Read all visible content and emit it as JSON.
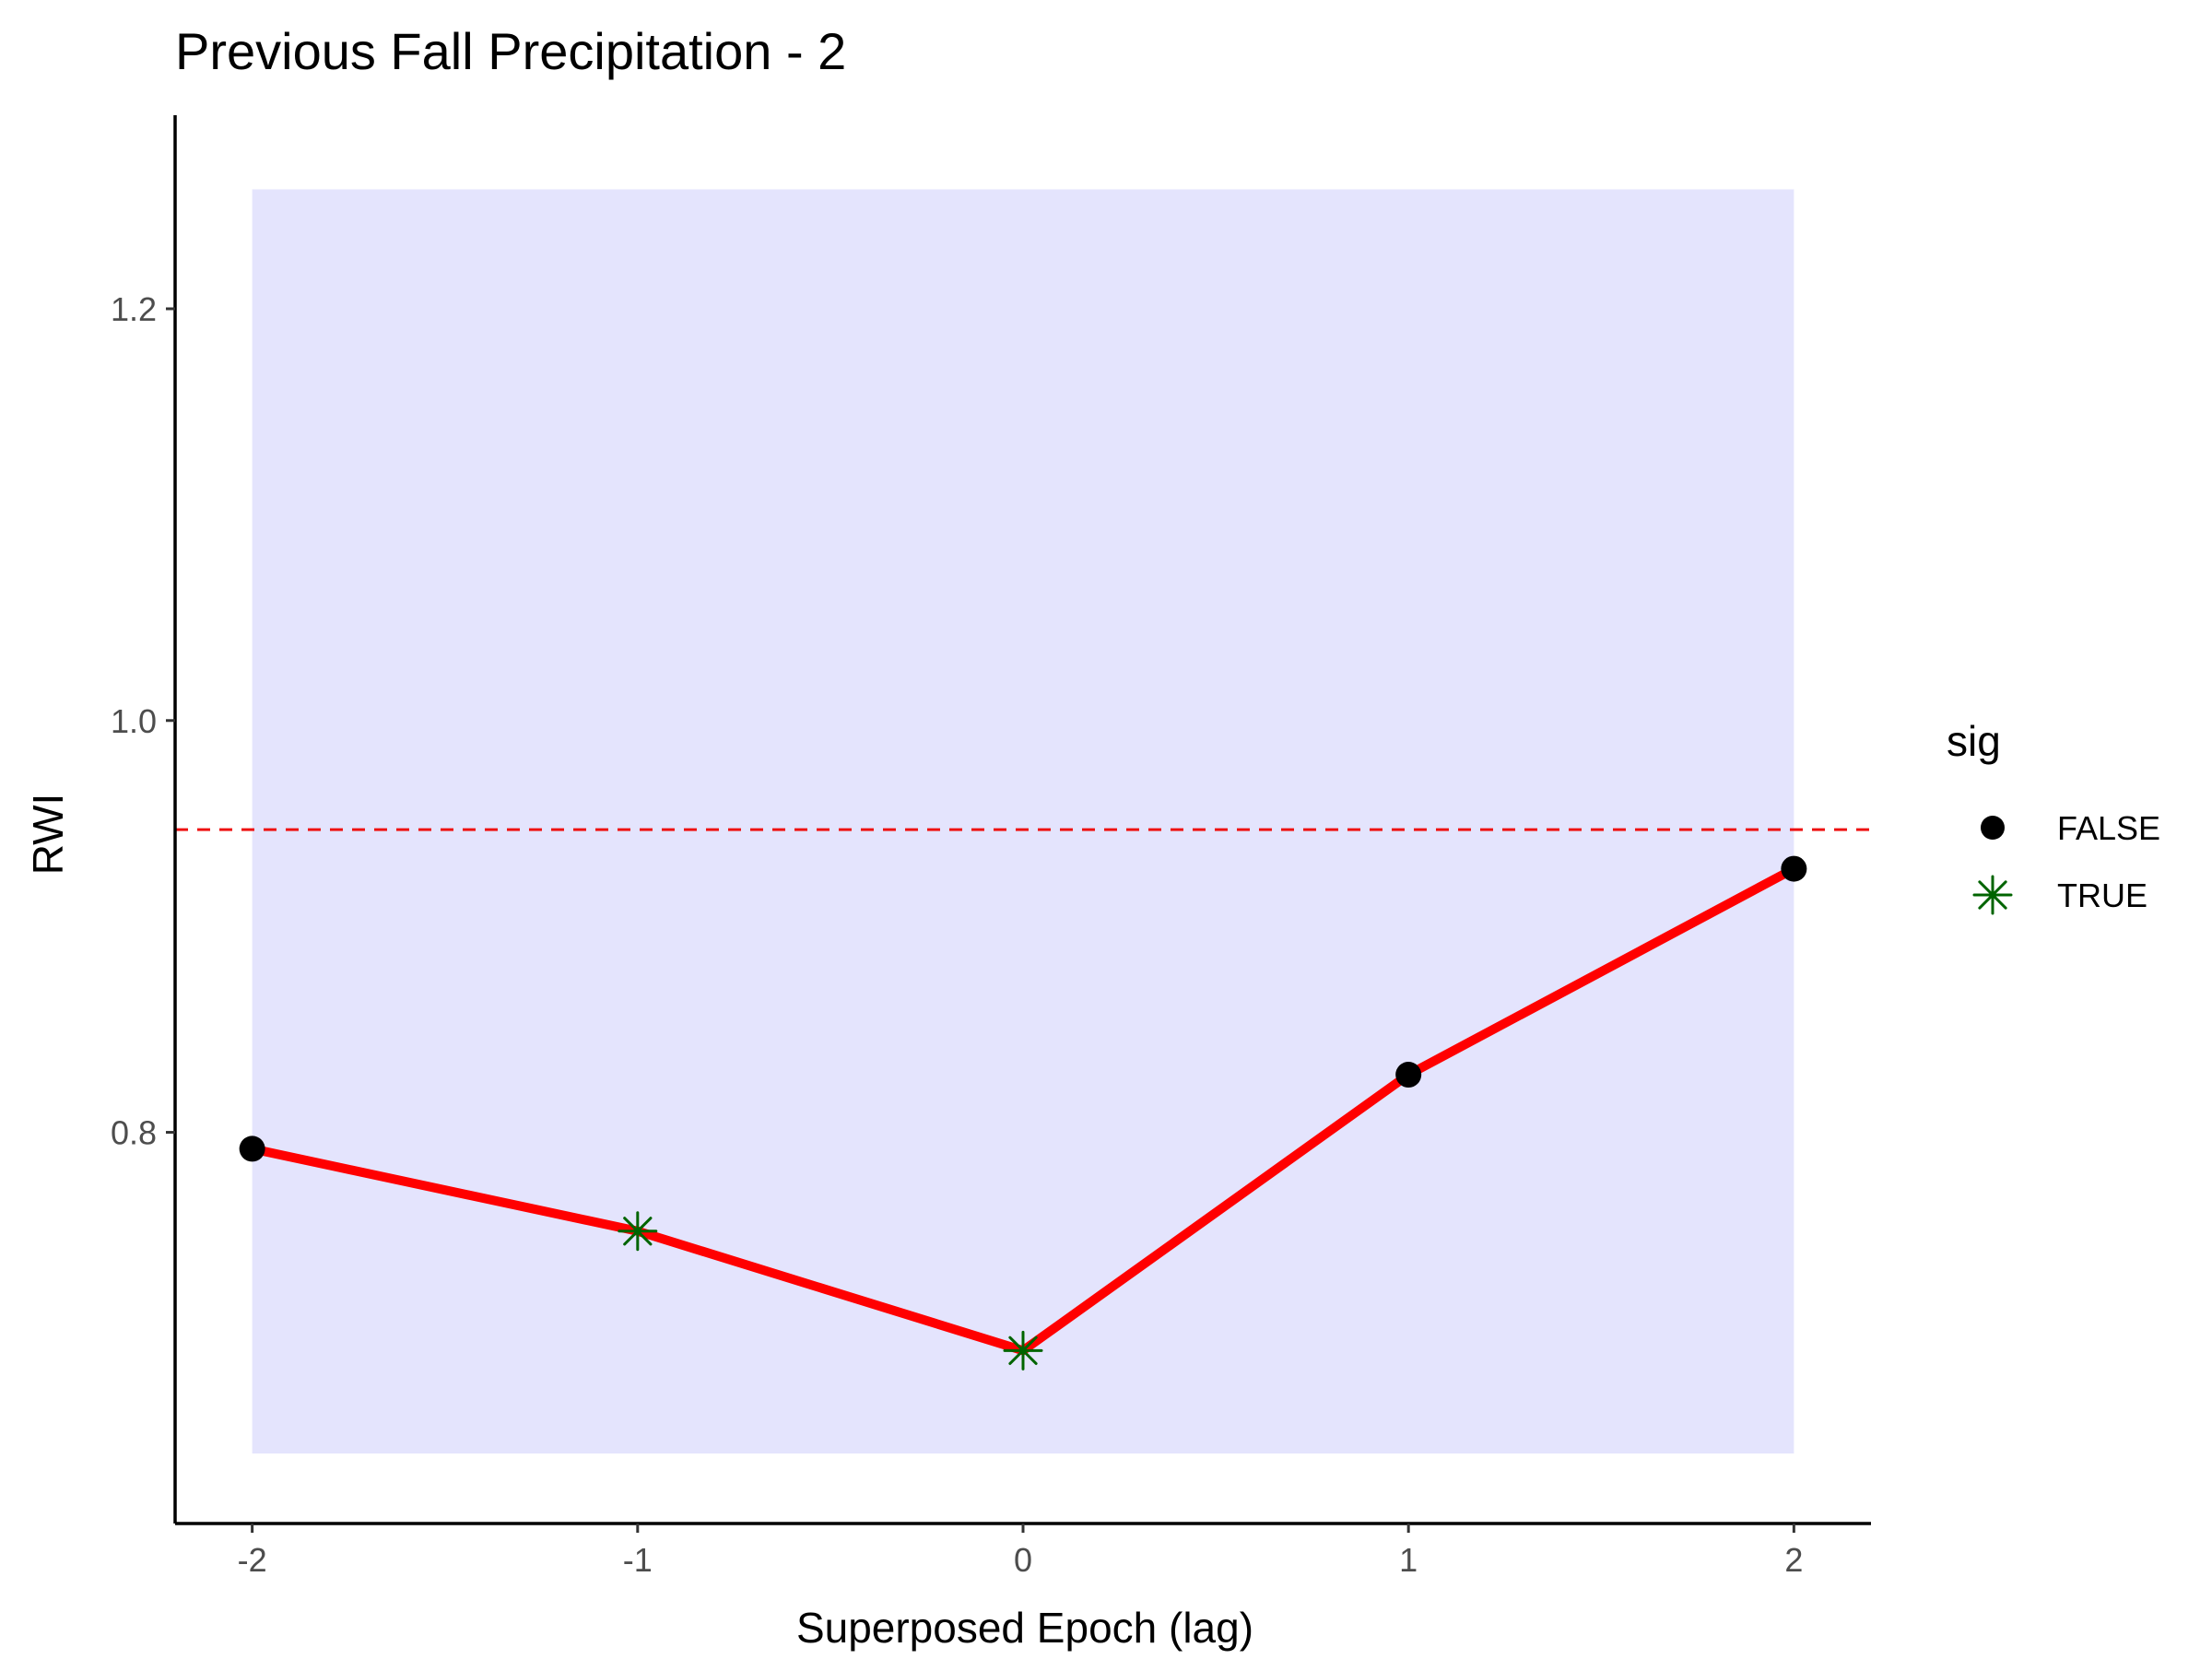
{
  "chart_data": {
    "type": "line",
    "title": "Previous Fall Precipitation - 2",
    "xlabel": "Superposed Epoch (lag)",
    "ylabel": "RWI",
    "x": [
      -2,
      -1,
      0,
      1,
      2
    ],
    "x_tick_labels": [
      "-2",
      "-1",
      "0",
      "1",
      "2"
    ],
    "y_ticks": [
      0.8,
      1.0,
      1.2
    ],
    "y_tick_labels": [
      "0.8",
      "1.0",
      "1.2"
    ],
    "xlim": [
      -2.2,
      2.2
    ],
    "ylim": [
      0.61,
      1.294
    ],
    "series": [
      {
        "values": [
          0.792,
          0.752,
          0.694,
          0.828,
          0.928
        ],
        "sig": [
          false,
          true,
          true,
          false,
          false
        ],
        "color": "#ff0000"
      }
    ],
    "confidence_band": {
      "x": [
        -2,
        2
      ],
      "lower": 0.644,
      "upper": 1.258,
      "color": "#e4e4fd"
    },
    "reference_line": {
      "y": 0.947,
      "color": "#ee1111",
      "style": "dashed"
    },
    "legend": {
      "title": "sig",
      "placement": "right",
      "entries": [
        {
          "label": "FALSE",
          "marker": "circle",
          "color": "#000000"
        },
        {
          "label": "TRUE",
          "marker": "asterisk",
          "color": "#006400"
        }
      ]
    },
    "grid": false
  }
}
